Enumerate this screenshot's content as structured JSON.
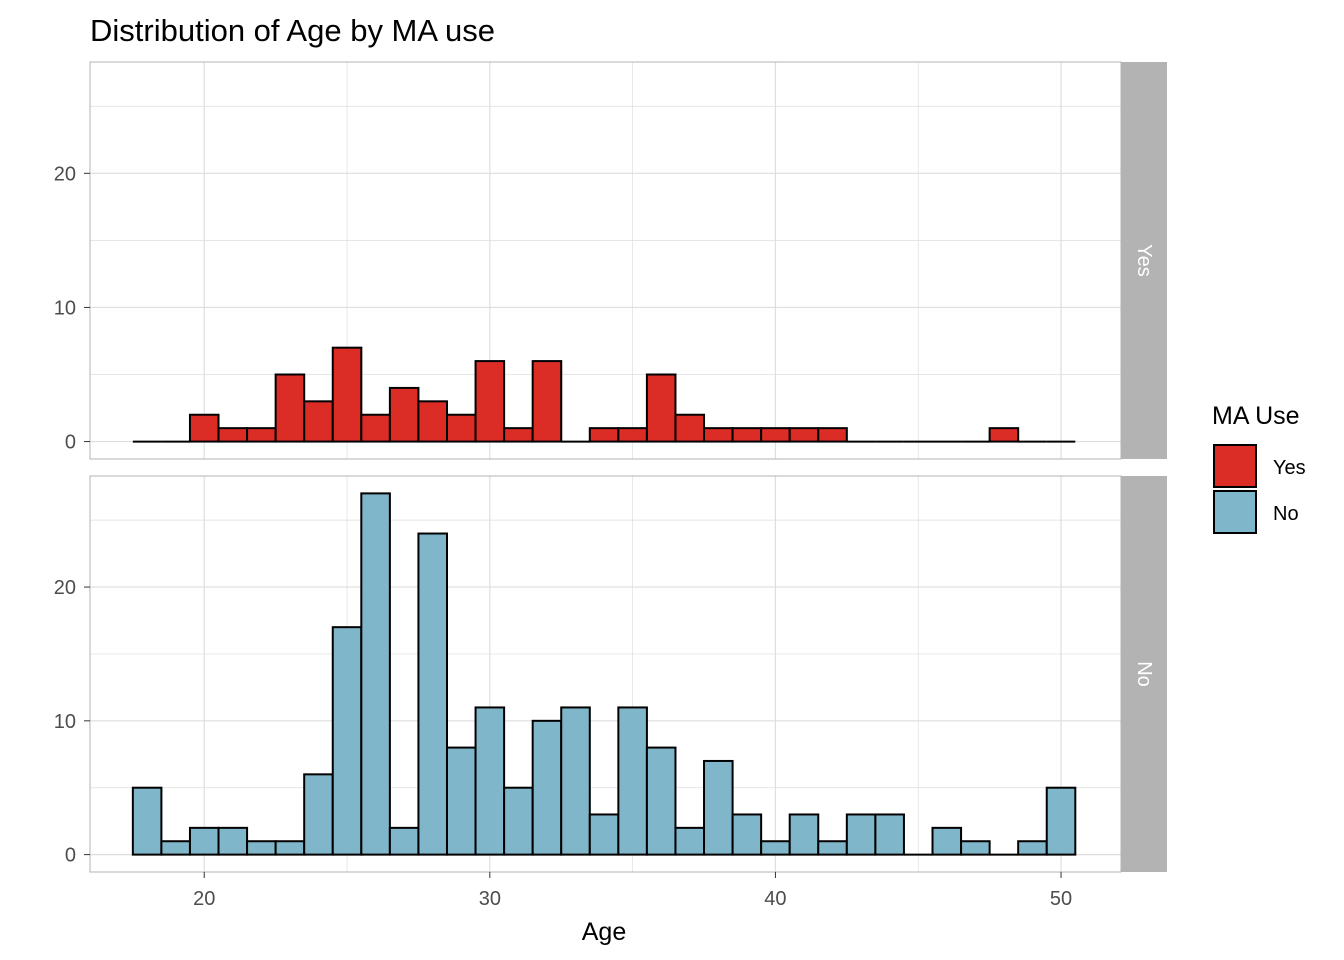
{
  "chart_data": {
    "type": "bar",
    "subtype": "faceted-histogram",
    "title": "Distribution of Age by MA use",
    "xlabel": "Age",
    "ylabel": "",
    "xlim": [
      16,
      52.1
    ],
    "ylim": [
      -1.3,
      28.3
    ],
    "x_ticks": [
      "20",
      "30",
      "40",
      "50"
    ],
    "y_ticks": [
      "0",
      "10",
      "20"
    ],
    "grid": true,
    "bin_width": 1,
    "bin_starts": [
      17.5,
      18.5,
      19.5,
      20.5,
      21.5,
      22.5,
      23.5,
      24.5,
      25.5,
      26.5,
      27.5,
      28.5,
      29.5,
      30.5,
      31.5,
      32.5,
      33.5,
      34.5,
      35.5,
      36.5,
      37.5,
      38.5,
      39.5,
      40.5,
      41.5,
      42.5,
      43.5,
      44.5,
      45.5,
      46.5,
      47.5,
      48.5,
      49.5
    ],
    "legend": {
      "title": "MA Use",
      "position": "right",
      "items": [
        {
          "label": "Yes",
          "color": "#dc2c26"
        },
        {
          "label": "No",
          "color": "#80b6c9"
        }
      ]
    },
    "series": [
      {
        "name": "Yes",
        "color": "#dc2c26",
        "values": [
          0,
          0,
          2,
          1,
          1,
          5,
          3,
          7,
          2,
          4,
          3,
          2,
          6,
          1,
          6,
          0,
          1,
          1,
          5,
          2,
          1,
          1,
          1,
          1,
          1,
          0,
          0,
          0,
          0,
          0,
          1,
          0,
          0
        ]
      },
      {
        "name": "No",
        "color": "#80b6c9",
        "values": [
          5,
          1,
          2,
          2,
          1,
          1,
          6,
          17,
          27,
          2,
          24,
          8,
          11,
          5,
          10,
          11,
          3,
          11,
          8,
          2,
          7,
          3,
          1,
          3,
          1,
          3,
          3,
          0,
          2,
          1,
          0,
          1,
          5
        ]
      }
    ]
  },
  "colors": {
    "strip_background": "#b3b3b3",
    "grid": "#dedede",
    "bar_outline": "#000000"
  }
}
